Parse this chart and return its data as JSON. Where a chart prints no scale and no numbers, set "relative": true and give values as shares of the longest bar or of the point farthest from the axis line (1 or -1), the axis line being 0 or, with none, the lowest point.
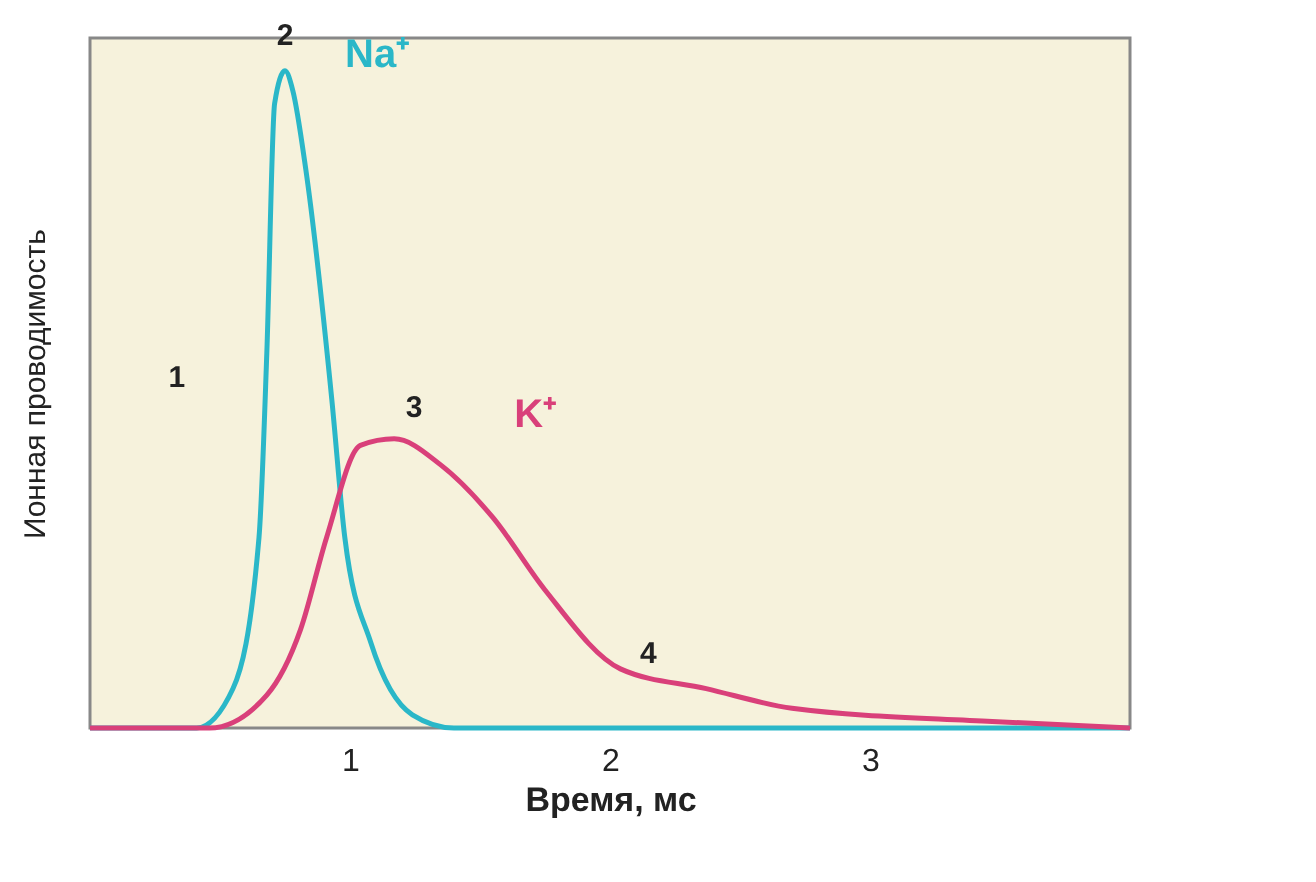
{
  "chart_data": {
    "type": "line",
    "xlabel": "Время, мс",
    "ylabel": "Ионная проводимость",
    "relative": true,
    "xlim": [
      0,
      4
    ],
    "xticks": [
      1,
      2,
      3
    ],
    "grid": false,
    "series": [
      {
        "name": "Na⁺",
        "color": "#2ab7c8",
        "x": [
          0,
          0.41,
          0.55,
          0.65,
          0.68,
          0.71,
          0.75,
          0.78,
          0.83,
          0.93,
          0.98,
          1.08,
          1.24,
          1.4,
          4.0
        ],
        "values": [
          0,
          0,
          0.06,
          0.29,
          0.57,
          0.95,
          1.0,
          0.97,
          0.85,
          0.5,
          0.29,
          0.13,
          0.02,
          0,
          0
        ]
      },
      {
        "name": "K⁺",
        "color": "#d9407a",
        "x": [
          0,
          0.46,
          0.68,
          0.81,
          0.91,
          1.04,
          1.17,
          1.35,
          1.55,
          1.75,
          2.04,
          2.37,
          2.7,
          3.47,
          4.0
        ],
        "values": [
          0,
          0,
          0.05,
          0.15,
          0.29,
          0.43,
          0.44,
          0.4,
          0.32,
          0.21,
          0.09,
          0.06,
          0.03,
          0.01,
          0
        ]
      }
    ],
    "annotations": [
      {
        "text": "1",
        "x": 0.68,
        "y": 0.57
      },
      {
        "text": "2",
        "x": 0.75,
        "y": 1.0
      },
      {
        "text": "3",
        "x": 1.17,
        "y": 0.44
      },
      {
        "text": "4",
        "x": 2.04,
        "y": 0.09
      }
    ]
  }
}
